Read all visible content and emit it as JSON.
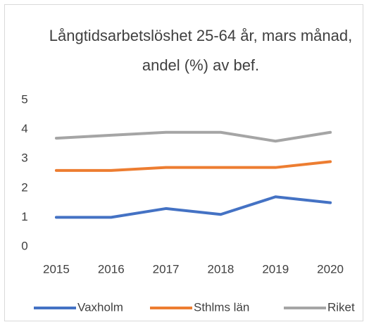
{
  "chart_data": {
    "type": "line",
    "title": "Långtidsarbetslöshet 25-64 år, mars månad, andel (%) av bef.",
    "categories": [
      "2015",
      "2016",
      "2017",
      "2018",
      "2019",
      "2020"
    ],
    "series": [
      {
        "name": "Vaxholm",
        "color": "#4472c4",
        "values": [
          1.0,
          1.0,
          1.3,
          1.1,
          1.7,
          1.5
        ]
      },
      {
        "name": "Sthlms län",
        "color": "#ed7d31",
        "values": [
          2.6,
          2.6,
          2.7,
          2.7,
          2.7,
          2.9
        ]
      },
      {
        "name": "Riket",
        "color": "#a5a5a5",
        "values": [
          3.7,
          3.8,
          3.9,
          3.9,
          3.6,
          3.9
        ]
      }
    ],
    "ylim": [
      0,
      5
    ],
    "yticks": [
      0,
      1,
      2,
      3,
      4,
      5
    ],
    "grid": false,
    "legend": "bottom"
  }
}
